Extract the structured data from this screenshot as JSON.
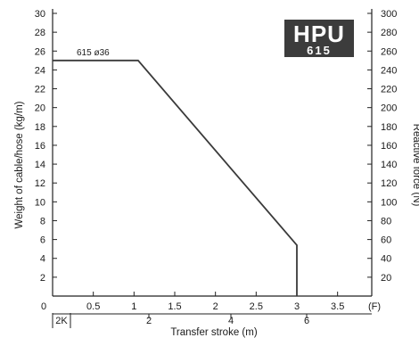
{
  "chart_data": {
    "type": "line",
    "title": "",
    "logo": {
      "line1": "HPU",
      "line2": "615",
      "bg_color": "#3c3c3c",
      "text_color": "#ffffff"
    },
    "xlabel": "Transfer stroke (m)",
    "ylabel_left": "Weight of cable/hose (kg/m)",
    "ylabel_right": "Reactive force (N)",
    "x_unit_label": "(F)",
    "x_primary": {
      "range": [
        0,
        3.5
      ],
      "tick_values": [
        0.5,
        1,
        1.5,
        2,
        2.5,
        3,
        3.5
      ],
      "tick_labels": [
        "0.5",
        "1",
        "1.5",
        "2",
        "2.5",
        "3",
        "3.5"
      ],
      "origin_label": "0"
    },
    "x_secondary": {
      "tick_values": [
        2,
        4,
        6
      ],
      "tick_labels": [
        "2",
        "4",
        "6"
      ],
      "marker_label": "2K"
    },
    "y_left": {
      "range": [
        0,
        30
      ],
      "tick_values": [
        2,
        4,
        6,
        8,
        10,
        12,
        14,
        16,
        18,
        20,
        22,
        24,
        26,
        28,
        30
      ]
    },
    "y_right": {
      "range": [
        0,
        300
      ],
      "tick_values": [
        20,
        40,
        60,
        80,
        100,
        120,
        140,
        160,
        180,
        200,
        220,
        240,
        260,
        280,
        300
      ]
    },
    "series": [
      {
        "name": "615 ø36",
        "color": "#3a3a3a",
        "x": [
          0,
          1.05,
          3.0,
          3.0
        ],
        "y": [
          25,
          25,
          5.4,
          0
        ]
      }
    ],
    "grid": false,
    "legend": "none"
  }
}
